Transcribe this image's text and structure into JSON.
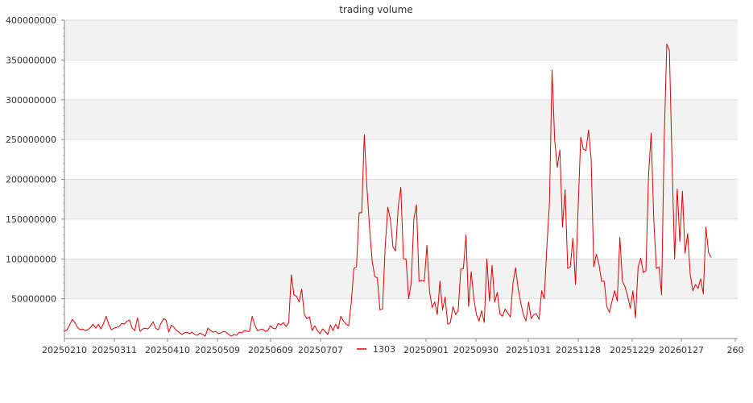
{
  "chart_data": {
    "type": "line",
    "title": "trading volume",
    "xlabel": "",
    "ylabel": "",
    "ylim": [
      0,
      400000000
    ],
    "yticks": [
      50000000,
      100000000,
      150000000,
      200000000,
      250000000,
      300000000,
      350000000,
      400000000
    ],
    "ytick_labels": [
      "50000000",
      "100000000",
      "150000000",
      "200000000",
      "250000000",
      "300000000",
      "350000000",
      "400000000"
    ],
    "xtick_labels": [
      "20250210",
      "20250311",
      "20250410",
      "20250509",
      "20250609",
      "20250707",
      "20250901",
      "20250930",
      "20251031",
      "20251128",
      "20251229",
      "20260127",
      "260"
    ],
    "grid": true,
    "legend_position": "bottom",
    "series": [
      {
        "name": "1303",
        "color": "#e00000",
        "values": [
          9000000,
          11000000,
          17000000,
          24000000,
          20000000,
          14000000,
          11000000,
          12000000,
          10000000,
          11000000,
          14000000,
          18000000,
          13000000,
          18000000,
          12000000,
          19000000,
          28000000,
          18000000,
          11000000,
          13000000,
          14000000,
          15000000,
          19000000,
          18000000,
          22000000,
          23000000,
          13000000,
          10000000,
          26000000,
          9000000,
          12000000,
          13000000,
          12000000,
          16000000,
          21000000,
          13000000,
          11000000,
          19000000,
          25000000,
          23000000,
          8000000,
          17000000,
          14000000,
          10000000,
          8000000,
          5000000,
          7000000,
          8000000,
          6000000,
          8000000,
          5000000,
          4000000,
          7000000,
          5000000,
          3000000,
          13000000,
          10000000,
          8000000,
          9000000,
          6000000,
          7000000,
          9000000,
          8000000,
          5000000,
          3000000,
          5000000,
          4000000,
          8000000,
          7000000,
          10000000,
          9000000,
          9000000,
          28000000,
          17000000,
          10000000,
          11000000,
          12000000,
          9000000,
          10000000,
          16000000,
          13000000,
          12000000,
          19000000,
          17000000,
          20000000,
          15000000,
          20000000,
          80000000,
          55000000,
          53000000,
          46000000,
          62000000,
          30000000,
          25000000,
          27000000,
          10000000,
          16000000,
          10000000,
          6000000,
          12000000,
          9000000,
          5000000,
          17000000,
          10000000,
          18000000,
          12000000,
          28000000,
          22000000,
          18000000,
          16000000,
          45000000,
          88000000,
          90000000,
          158000000,
          158000000,
          256000000,
          190000000,
          140000000,
          98000000,
          78000000,
          76000000,
          36000000,
          37000000,
          115000000,
          165000000,
          150000000,
          115000000,
          110000000,
          165000000,
          190000000,
          100000000,
          100000000,
          50000000,
          70000000,
          150000000,
          168000000,
          72000000,
          73000000,
          72000000,
          117000000,
          60000000,
          39000000,
          46000000,
          30000000,
          72000000,
          36000000,
          52000000,
          18000000,
          20000000,
          40000000,
          30000000,
          35000000,
          87000000,
          88000000,
          130000000,
          40000000,
          84000000,
          50000000,
          30000000,
          22000000,
          35000000,
          20000000,
          100000000,
          47000000,
          92000000,
          46000000,
          58000000,
          31000000,
          28000000,
          37000000,
          32000000,
          27000000,
          69000000,
          89000000,
          63000000,
          45000000,
          30000000,
          22000000,
          46000000,
          25000000,
          30000000,
          31000000,
          24000000,
          60000000,
          50000000,
          115000000,
          170000000,
          337000000,
          250000000,
          215000000,
          237000000,
          140000000,
          187000000,
          88000000,
          90000000,
          126000000,
          68000000,
          165000000,
          253000000,
          238000000,
          236000000,
          262000000,
          225000000,
          90000000,
          106000000,
          93000000,
          72000000,
          72000000,
          40000000,
          33000000,
          47000000,
          60000000,
          47000000,
          127000000,
          72000000,
          65000000,
          53000000,
          38000000,
          60000000,
          26000000,
          90000000,
          101000000,
          83000000,
          85000000,
          205000000,
          258000000,
          150000000,
          88000000,
          90000000,
          55000000,
          250000000,
          370000000,
          362000000,
          225000000,
          100000000,
          188000000,
          122000000,
          185000000,
          107000000,
          132000000,
          80000000,
          60000000,
          68000000,
          63000000,
          75000000,
          56000000,
          140000000,
          108000000,
          102000000
        ]
      }
    ]
  }
}
